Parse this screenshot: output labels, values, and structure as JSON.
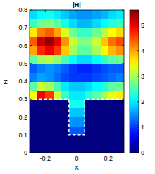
{
  "chart_data": {
    "type": "heatmap",
    "title": "|H|",
    "x_label": "X",
    "y_label": "Z",
    "xlim": [
      -0.3,
      0.3
    ],
    "ylim": [
      0,
      0.8
    ],
    "xticks": [
      -0.2,
      0,
      0.2
    ],
    "yticks": [
      0,
      0.1,
      0.2,
      0.3,
      0.4,
      0.5,
      0.6,
      0.7,
      0.8
    ],
    "color_range": [
      0,
      5.6
    ],
    "color_ticks": [
      0,
      1,
      2,
      3,
      4,
      5
    ],
    "outline": {
      "x": [
        -0.3,
        -0.05,
        -0.05,
        0.05,
        0.05,
        0.3
      ],
      "y": [
        0.3,
        0.3,
        0.1,
        0.1,
        0.3,
        0.3
      ]
    },
    "cells": [
      [
        0,
        0,
        0,
        0,
        0,
        0,
        0,
        0,
        0,
        0,
        0,
        0
      ],
      [
        0,
        0,
        0,
        0,
        0,
        0,
        0,
        0,
        0,
        0,
        0,
        0
      ],
      [
        0,
        0,
        0,
        0,
        0,
        1.2,
        1.2,
        0,
        0,
        0,
        0,
        0
      ],
      [
        0,
        0,
        0,
        0,
        0,
        1.5,
        1.5,
        0,
        0,
        0,
        0,
        0
      ],
      [
        0,
        0,
        0,
        0,
        0,
        1.8,
        1.8,
        0,
        0,
        0,
        0,
        0
      ],
      [
        0,
        0,
        0,
        0,
        0,
        2.2,
        2.2,
        0,
        0,
        0,
        0,
        0
      ],
      [
        3.5,
        5.0,
        4.6,
        3.2,
        2.4,
        2.0,
        2.0,
        2.3,
        2.6,
        3.0,
        3.4,
        3.6
      ],
      [
        2.6,
        3.2,
        3.0,
        2.5,
        2.0,
        1.8,
        1.8,
        1.9,
        2.1,
        2.3,
        2.6,
        2.7
      ],
      [
        1.4,
        1.6,
        1.5,
        1.3,
        1.1,
        1.0,
        1.0,
        1.0,
        1.1,
        1.2,
        1.3,
        1.4
      ],
      [
        1.2,
        1.4,
        1.5,
        1.4,
        1.2,
        1.0,
        0.9,
        0.9,
        1.0,
        1.1,
        1.2,
        1.2
      ],
      [
        2.6,
        3.0,
        3.1,
        2.9,
        2.5,
        2.1,
        1.9,
        1.9,
        2.1,
        2.4,
        2.6,
        2.7
      ],
      [
        4.0,
        4.7,
        5.0,
        4.6,
        3.8,
        3.0,
        2.6,
        2.6,
        3.0,
        3.5,
        3.9,
        4.1
      ],
      [
        4.4,
        5.2,
        5.5,
        5.0,
        4.1,
        3.2,
        2.8,
        2.8,
        3.2,
        3.8,
        4.3,
        4.5
      ],
      [
        3.6,
        4.2,
        4.4,
        4.0,
        3.3,
        2.7,
        2.4,
        2.4,
        2.7,
        3.1,
        3.5,
        3.7
      ],
      [
        2.4,
        2.7,
        2.8,
        2.6,
        2.2,
        1.9,
        1.7,
        1.7,
        1.9,
        2.1,
        2.3,
        2.4
      ],
      [
        1.9,
        2.1,
        2.2,
        2.0,
        1.8,
        1.6,
        1.5,
        1.5,
        1.6,
        1.7,
        1.9,
        2.0
      ]
    ]
  }
}
